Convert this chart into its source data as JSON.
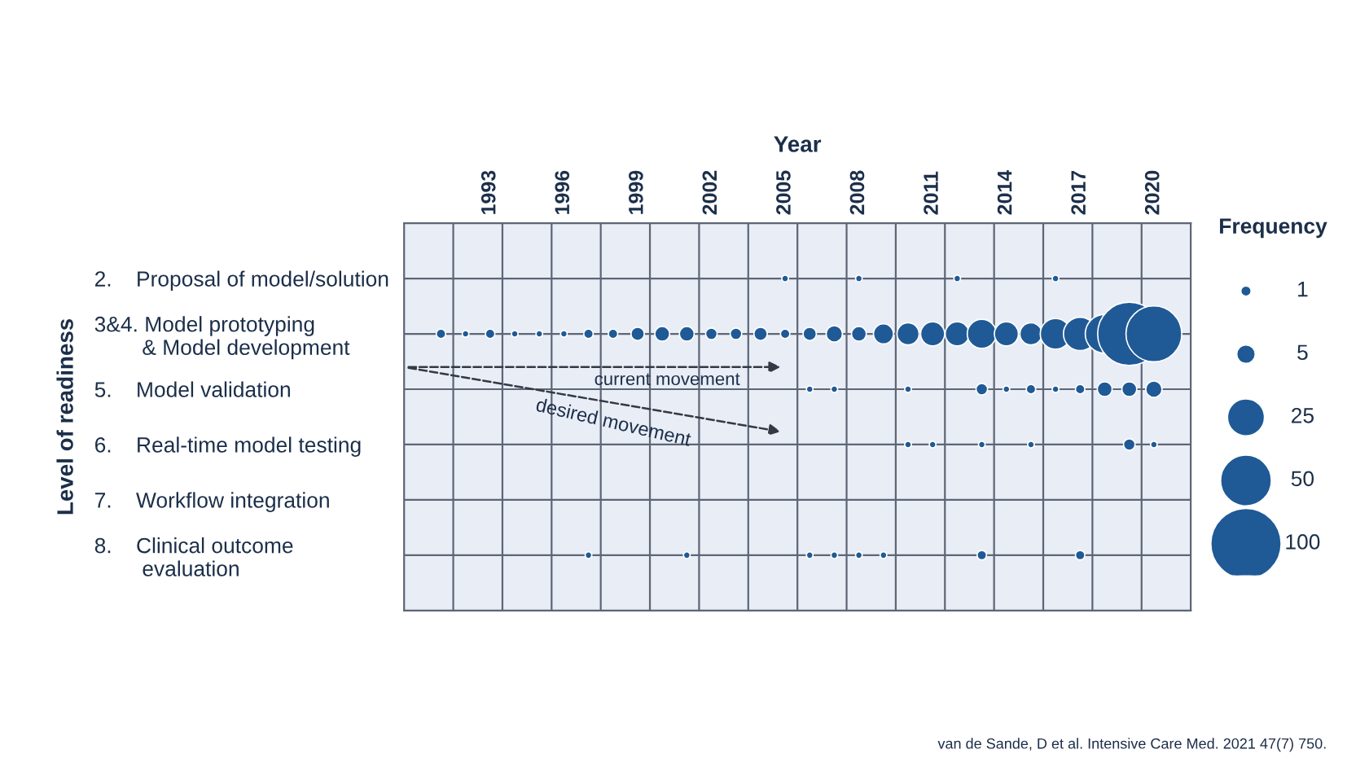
{
  "chart_data": {
    "type": "bubble",
    "orientation": "horizontal",
    "xlabel": "Year",
    "ylabel": "Level of readiness",
    "legend_title": "Frequency",
    "categories": [
      "2.    Proposal of model/solution",
      "3&4. Model prototyping\n        & Model development",
      "5.    Model validation",
      "6.    Real-time model testing",
      "7.    Workflow integration",
      "8.    Clinical outcome\n        evaluation"
    ],
    "xlim": [
      1989.5,
      2021.5
    ],
    "xticks": [
      1993,
      1996,
      1999,
      2002,
      2005,
      2008,
      2011,
      2014,
      2017,
      2020
    ],
    "grid": true,
    "size_legend": [
      1,
      5,
      25,
      50,
      100
    ],
    "series": [
      {
        "color": "#1f5a96",
        "values": [
          null,
          1991,
          null,
          null,
          null,
          null
        ],
        "sizes": [
          null,
          2,
          null,
          null,
          null,
          null
        ]
      },
      {
        "color": "#1f5a96",
        "values": [
          null,
          1992,
          null,
          null,
          null,
          null
        ],
        "sizes": [
          null,
          1,
          null,
          null,
          null,
          null
        ]
      },
      {
        "color": "#1f5a96",
        "values": [
          null,
          1993,
          null,
          null,
          null,
          null
        ],
        "sizes": [
          null,
          2,
          null,
          null,
          null,
          null
        ]
      },
      {
        "color": "#1f5a96",
        "values": [
          null,
          1994,
          null,
          null,
          null,
          null
        ],
        "sizes": [
          null,
          1,
          null,
          null,
          null,
          null
        ]
      },
      {
        "color": "#1f5a96",
        "values": [
          null,
          1995,
          null,
          null,
          null,
          null
        ],
        "sizes": [
          null,
          1,
          null,
          null,
          null,
          null
        ]
      },
      {
        "color": "#1f5a96",
        "values": [
          null,
          1996,
          null,
          null,
          null,
          null
        ],
        "sizes": [
          null,
          1,
          null,
          null,
          null,
          null
        ]
      },
      {
        "color": "#1f5a96",
        "values": [
          null,
          1997,
          null,
          null,
          null,
          1997
        ],
        "sizes": [
          null,
          2,
          null,
          null,
          null,
          1
        ]
      },
      {
        "color": "#1f5a96",
        "values": [
          null,
          1998,
          null,
          null,
          null,
          null
        ],
        "sizes": [
          null,
          2,
          null,
          null,
          null,
          null
        ]
      },
      {
        "color": "#1f5a96",
        "values": [
          null,
          1999,
          null,
          null,
          null,
          null
        ],
        "sizes": [
          null,
          4,
          null,
          null,
          null,
          null
        ]
      },
      {
        "color": "#1f5a96",
        "values": [
          null,
          2000,
          null,
          null,
          null,
          null
        ],
        "sizes": [
          null,
          5,
          null,
          null,
          null,
          null
        ]
      },
      {
        "color": "#1f5a96",
        "values": [
          null,
          2001,
          null,
          null,
          null,
          2001
        ],
        "sizes": [
          null,
          5,
          null,
          null,
          null,
          1
        ]
      },
      {
        "color": "#1f5a96",
        "values": [
          null,
          2002,
          null,
          null,
          null,
          null
        ],
        "sizes": [
          null,
          3,
          null,
          null,
          null,
          null
        ]
      },
      {
        "color": "#1f5a96",
        "values": [
          null,
          2003,
          null,
          null,
          null,
          null
        ],
        "sizes": [
          null,
          3,
          null,
          null,
          null,
          null
        ]
      },
      {
        "color": "#1f5a96",
        "values": [
          null,
          2004,
          null,
          null,
          null,
          null
        ],
        "sizes": [
          null,
          4,
          null,
          null,
          null,
          null
        ]
      },
      {
        "color": "#1f5a96",
        "values": [
          2005,
          2005,
          null,
          null,
          null,
          null
        ],
        "sizes": [
          1,
          2,
          null,
          null,
          null,
          null
        ]
      },
      {
        "color": "#1f5a96",
        "values": [
          null,
          2006,
          2006,
          null,
          null,
          2006
        ],
        "sizes": [
          null,
          4,
          1,
          null,
          null,
          1
        ]
      },
      {
        "color": "#1f5a96",
        "values": [
          null,
          2007,
          2007,
          null,
          null,
          2007
        ],
        "sizes": [
          null,
          6,
          1,
          null,
          null,
          1
        ]
      },
      {
        "color": "#1f5a96",
        "values": [
          2008,
          2008,
          null,
          null,
          null,
          2008
        ],
        "sizes": [
          1,
          5,
          null,
          null,
          null,
          1
        ]
      },
      {
        "color": "#1f5a96",
        "values": [
          null,
          2009,
          null,
          null,
          null,
          2009
        ],
        "sizes": [
          null,
          9,
          null,
          null,
          null,
          1
        ]
      },
      {
        "color": "#1f5a96",
        "values": [
          null,
          2010,
          2010,
          2010,
          null,
          null
        ],
        "sizes": [
          null,
          11,
          1,
          1,
          null,
          null
        ]
      },
      {
        "color": "#1f5a96",
        "values": [
          null,
          2011,
          null,
          2011,
          null,
          null
        ],
        "sizes": [
          null,
          13,
          null,
          1,
          null,
          null
        ]
      },
      {
        "color": "#1f5a96",
        "values": [
          2012,
          2012,
          null,
          null,
          null,
          null
        ],
        "sizes": [
          1,
          13,
          null,
          null,
          null,
          null
        ]
      },
      {
        "color": "#1f5a96",
        "values": [
          null,
          2013,
          2013,
          2013,
          null,
          2013
        ],
        "sizes": [
          null,
          19,
          3,
          1,
          null,
          2
        ]
      },
      {
        "color": "#1f5a96",
        "values": [
          null,
          2014,
          2014,
          null,
          null,
          null
        ],
        "sizes": [
          null,
          13,
          1,
          null,
          null,
          null
        ]
      },
      {
        "color": "#1f5a96",
        "values": [
          null,
          2015,
          2015,
          2015,
          null,
          null
        ],
        "sizes": [
          null,
          11,
          2,
          1,
          null,
          null
        ]
      },
      {
        "color": "#1f5a96",
        "values": [
          2016,
          2016,
          2016,
          null,
          null,
          null
        ],
        "sizes": [
          1,
          21,
          1,
          null,
          null,
          null
        ]
      },
      {
        "color": "#1f5a96",
        "values": [
          null,
          2017,
          2017,
          null,
          null,
          2017
        ],
        "sizes": [
          null,
          25,
          2,
          null,
          null,
          2
        ]
      },
      {
        "color": "#1f5a96",
        "values": [
          null,
          2018,
          2018,
          null,
          null,
          null
        ],
        "sizes": [
          null,
          34,
          5,
          null,
          null,
          null
        ]
      },
      {
        "color": "#1f5a96",
        "values": [
          null,
          2019,
          2019,
          2019,
          null,
          null
        ],
        "sizes": [
          null,
          90,
          5,
          3,
          null,
          null
        ]
      },
      {
        "color": "#1f5a96",
        "values": [
          null,
          2020,
          2020,
          2020,
          null,
          null
        ],
        "sizes": [
          null,
          70,
          6,
          1,
          null,
          null
        ]
      }
    ],
    "annotations": [
      "current movement",
      "desired movement",
      "van de Sande, D et al. Intensive Care Med. 2021 47(7) 750."
    ]
  }
}
